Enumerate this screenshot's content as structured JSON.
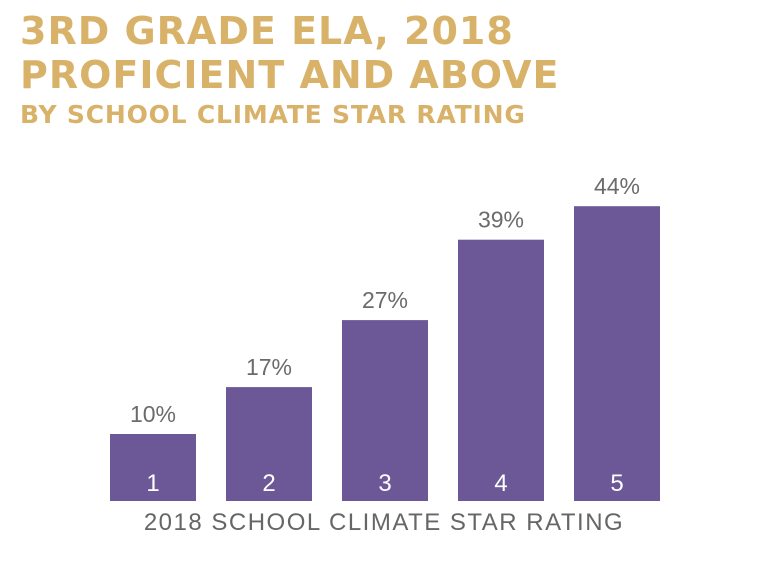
{
  "title": {
    "line1": "3RD GRADE ELA, 2018",
    "line2": "PROFICIENT AND ABOVE",
    "line3": "BY SCHOOL CLIMATE STAR RATING"
  },
  "colors": {
    "title": "#d9b26a",
    "bar": "#6c5897",
    "value_label": "#6b6b6b",
    "axis_label": "#666666"
  },
  "chart_data": {
    "type": "bar",
    "title": "3RD GRADE ELA, 2018 PROFICIENT AND ABOVE BY SCHOOL CLIMATE STAR RATING",
    "xlabel": "2018 SCHOOL CLIMATE STAR RATING",
    "ylabel": "",
    "categories": [
      "1",
      "2",
      "3",
      "4",
      "5"
    ],
    "values": [
      10,
      17,
      27,
      39,
      44
    ],
    "value_labels": [
      "10%",
      "17%",
      "27%",
      "39%",
      "44%"
    ],
    "ylim": [
      0,
      50
    ],
    "grid": false,
    "legend": "none"
  }
}
